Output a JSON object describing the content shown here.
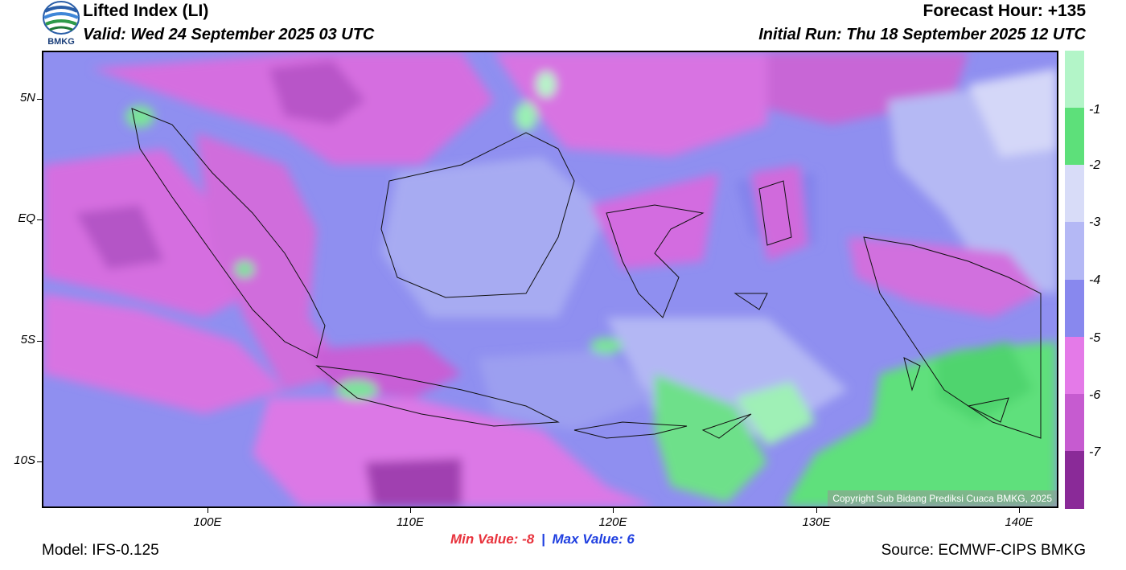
{
  "header": {
    "title": "Lifted Index (LI)",
    "valid": "Valid: Wed 24 September 2025 03 UTC",
    "forecast_hour": "Forecast Hour: +135",
    "initial_run": "Initial Run: Thu 18 September 2025 12 UTC"
  },
  "logo": {
    "text": "BMKG"
  },
  "axes": {
    "lat_labels": [
      "5N",
      "EQ",
      "5S",
      "10S"
    ],
    "lon_labels": [
      "100E",
      "110E",
      "120E",
      "130E",
      "140E"
    ]
  },
  "colorbar": {
    "labels": [
      "-1",
      "-2",
      "-3",
      "-4",
      "-5",
      "-6",
      "-7"
    ],
    "colors": [
      "#b3f5c8",
      "#5de07a",
      "#d8dcf8",
      "#b4b8f5",
      "#8888ee",
      "#e47ae8",
      "#c65bd0",
      "#8a2a98"
    ]
  },
  "map": {
    "copyright": "Copyright Sub Bidang Prediksi Cuaca BMKG, 2025"
  },
  "footer": {
    "model": "Model: IFS-0.125",
    "min_label": "Min Value:",
    "min_value": "-8",
    "separator": "|",
    "max_label": "Max Value:",
    "max_value": "6",
    "source": "Source: ECMWF-CIPS BMKG"
  }
}
